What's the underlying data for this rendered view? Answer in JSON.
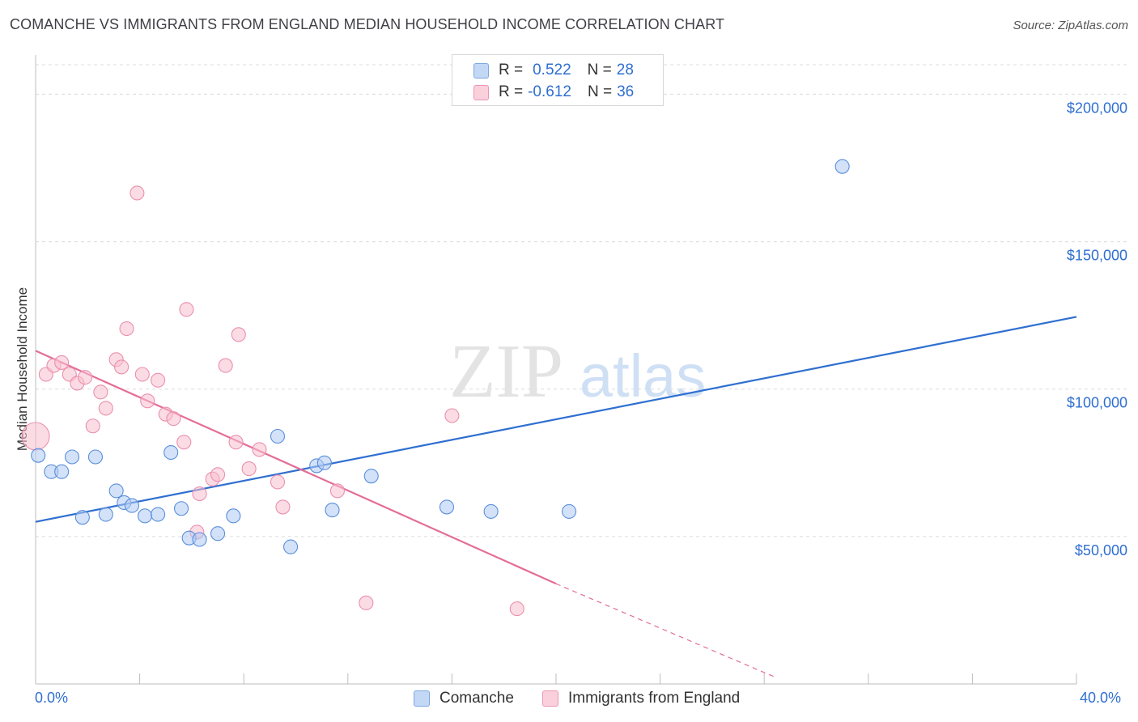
{
  "title": "COMANCHE VS IMMIGRANTS FROM ENGLAND MEDIAN HOUSEHOLD INCOME CORRELATION CHART",
  "source": "Source: ZipAtlas.com",
  "watermark": {
    "zip": "ZIP",
    "atlas": "atlas"
  },
  "legend": {
    "rows": [
      {
        "r_label": "R =",
        "r_value": "0.522",
        "n_label": "N =",
        "n_value": "28",
        "color": "#a8c8f0"
      },
      {
        "r_label": "R =",
        "r_value": "-0.612",
        "n_label": "N =",
        "n_value": "36",
        "color": "#f5b8cb"
      }
    ]
  },
  "bottom_legend": {
    "series1": "Comanche",
    "series2": "Immigrants from England"
  },
  "x_axis": {
    "min_label": "0.0%",
    "max_label": "40.0%"
  },
  "chart_data": {
    "type": "scatter",
    "title": "COMANCHE VS IMMIGRANTS FROM ENGLAND MEDIAN HOUSEHOLD INCOME CORRELATION CHART",
    "xlabel": "",
    "ylabel": "Median Household Income",
    "xlim": [
      0,
      40
    ],
    "ylim": [
      0,
      210000
    ],
    "y_ticks": [
      50000,
      100000,
      150000,
      200000
    ],
    "y_tick_labels": [
      "$50,000",
      "$100,000",
      "$150,000",
      "$200,000"
    ],
    "grid": true,
    "legend_position": "top-center",
    "series": [
      {
        "name": "Comanche",
        "color": "#2f6fd1",
        "fill": "#aecbf2",
        "R": 0.522,
        "N": 28,
        "trend": {
          "x0": 0,
          "y0": 55000,
          "x1": 40,
          "y1": 124500
        },
        "points": [
          [
            0.1,
            77500
          ],
          [
            0.6,
            72000
          ],
          [
            1.0,
            72000
          ],
          [
            1.4,
            77000
          ],
          [
            1.8,
            56500
          ],
          [
            2.3,
            77000
          ],
          [
            2.7,
            57500
          ],
          [
            3.1,
            65500
          ],
          [
            3.4,
            61500
          ],
          [
            3.7,
            60500
          ],
          [
            4.2,
            57000
          ],
          [
            4.7,
            57500
          ],
          [
            5.2,
            78500
          ],
          [
            5.6,
            59500
          ],
          [
            5.9,
            49500
          ],
          [
            6.3,
            49000
          ],
          [
            7.0,
            51000
          ],
          [
            7.6,
            57000
          ],
          [
            9.3,
            84000
          ],
          [
            9.8,
            46500
          ],
          [
            10.8,
            74000
          ],
          [
            11.1,
            75000
          ],
          [
            11.4,
            59000
          ],
          [
            12.9,
            70500
          ],
          [
            15.8,
            60000
          ],
          [
            17.5,
            58500
          ],
          [
            20.5,
            58500
          ],
          [
            31.0,
            175500
          ]
        ]
      },
      {
        "name": "Immigrants from England",
        "color": "#e46d97",
        "fill": "#f7bfd0",
        "R": -0.612,
        "N": 36,
        "trend": {
          "x0": 0,
          "y0": 113000,
          "x1": 20,
          "y1": 34000,
          "dash_x1": 28.5,
          "dash_y1": 2000
        },
        "points": [
          [
            0.0,
            84000
          ],
          [
            0.4,
            105000
          ],
          [
            0.7,
            108000
          ],
          [
            1.0,
            109000
          ],
          [
            1.3,
            105000
          ],
          [
            1.6,
            102000
          ],
          [
            1.9,
            104000
          ],
          [
            2.2,
            87500
          ],
          [
            2.5,
            99000
          ],
          [
            2.7,
            93500
          ],
          [
            3.1,
            110000
          ],
          [
            3.3,
            107500
          ],
          [
            3.5,
            120500
          ],
          [
            3.9,
            166500
          ],
          [
            4.1,
            105000
          ],
          [
            4.3,
            96000
          ],
          [
            4.7,
            103000
          ],
          [
            5.0,
            91500
          ],
          [
            5.3,
            90000
          ],
          [
            5.7,
            82000
          ],
          [
            5.8,
            127000
          ],
          [
            6.2,
            51500
          ],
          [
            6.3,
            64500
          ],
          [
            6.8,
            69500
          ],
          [
            7.0,
            71000
          ],
          [
            7.3,
            108000
          ],
          [
            7.7,
            82000
          ],
          [
            7.8,
            118500
          ],
          [
            8.2,
            73000
          ],
          [
            8.6,
            79500
          ],
          [
            9.3,
            68500
          ],
          [
            9.5,
            60000
          ],
          [
            11.6,
            65500
          ],
          [
            12.7,
            27500
          ],
          [
            16.0,
            91000
          ],
          [
            18.5,
            25500
          ]
        ]
      }
    ]
  }
}
